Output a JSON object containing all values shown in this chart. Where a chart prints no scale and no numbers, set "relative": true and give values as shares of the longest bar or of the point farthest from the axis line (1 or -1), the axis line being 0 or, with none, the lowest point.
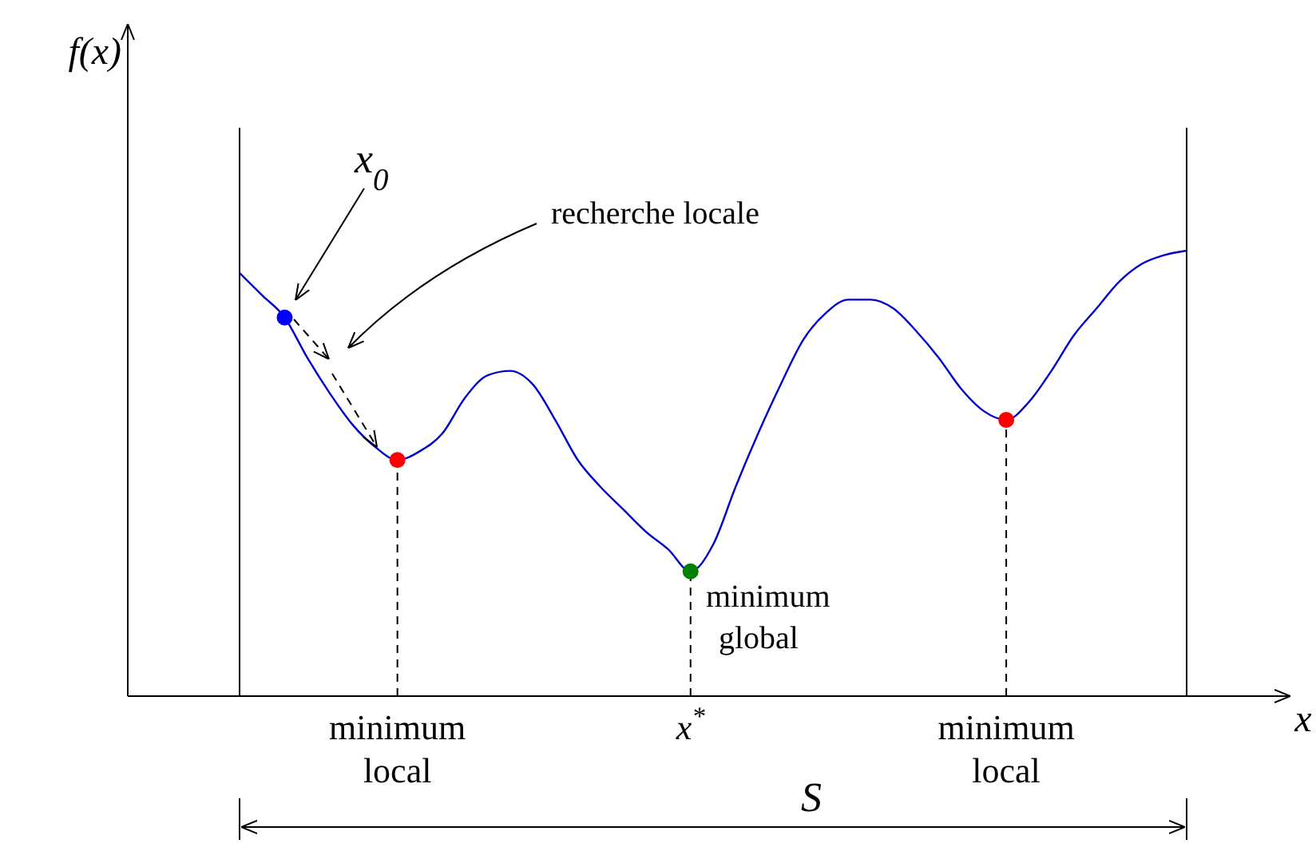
{
  "chart_data": {
    "type": "line",
    "relative": true,
    "xlabel": "x",
    "categories": [
      null,
      null,
      null,
      null,
      null,
      null,
      null,
      "minimum local",
      null,
      null,
      null,
      null,
      null,
      null,
      null,
      null,
      null,
      null,
      null,
      null,
      "x$^{*}$",
      null,
      null,
      null,
      null,
      null,
      null,
      null,
      null,
      null,
      null,
      null,
      null,
      null,
      "minimum local",
      null,
      null,
      null,
      null,
      null,
      null,
      null,
      null
    ],
    "series": [
      {
        "color": "#0000cc",
        "values": [
          0.95,
          0.9,
          0.85,
          0.76,
          0.68,
          0.61,
          0.56,
          0.53,
          0.55,
          0.59,
          0.67,
          0.72,
          0.73,
          0.7,
          0.62,
          0.53,
          0.47,
          0.42,
          0.37,
          0.33,
          0.28,
          0.34,
          0.47,
          0.59,
          0.7,
          0.8,
          0.86,
          0.89,
          0.89,
          0.87,
          0.82,
          0.76,
          0.69,
          0.64,
          0.62,
          0.66,
          0.73,
          0.81,
          0.87,
          0.93,
          0.97,
          0.99,
          1
        ]
      },
      {
        "type": "scatter",
        "color": "#0000ff",
        "marker": "circle",
        "values": [
          null,
          null,
          0.85,
          null,
          null,
          null,
          null,
          null,
          null,
          null,
          null,
          null,
          null,
          null,
          null,
          null,
          null,
          null,
          null,
          null,
          null,
          null,
          null,
          null,
          null,
          null,
          null,
          null,
          null,
          null,
          null,
          null,
          null,
          null,
          null,
          null,
          null,
          null,
          null,
          null,
          null,
          null,
          null
        ]
      },
      {
        "type": "lollipop",
        "color": "#ff0000",
        "marker": "circle",
        "line_style": "dashed",
        "values": [
          null,
          null,
          null,
          null,
          null,
          null,
          null,
          0.53,
          null,
          null,
          null,
          null,
          null,
          null,
          null,
          null,
          null,
          null,
          null,
          null,
          null,
          null,
          null,
          null,
          null,
          null,
          null,
          null,
          null,
          null,
          null,
          null,
          null,
          null,
          0.62,
          null,
          null,
          null,
          null,
          null,
          null,
          null,
          null
        ]
      },
      {
        "type": "lollipop",
        "color": "#008000",
        "marker": "circle",
        "line_style": "dashed",
        "values": [
          null,
          null,
          null,
          null,
          null,
          null,
          null,
          null,
          null,
          null,
          null,
          null,
          null,
          null,
          null,
          null,
          null,
          null,
          null,
          null,
          0.28,
          null,
          null,
          null,
          null,
          null,
          null,
          null,
          null,
          null,
          null,
          null,
          null,
          null,
          null,
          null,
          null,
          null,
          null,
          null,
          null,
          null,
          null
        ]
      }
    ],
    "annotations": [
      "x$_{0}$",
      "recherche locale",
      "minimum global",
      "S",
      "f(x)"
    ]
  }
}
